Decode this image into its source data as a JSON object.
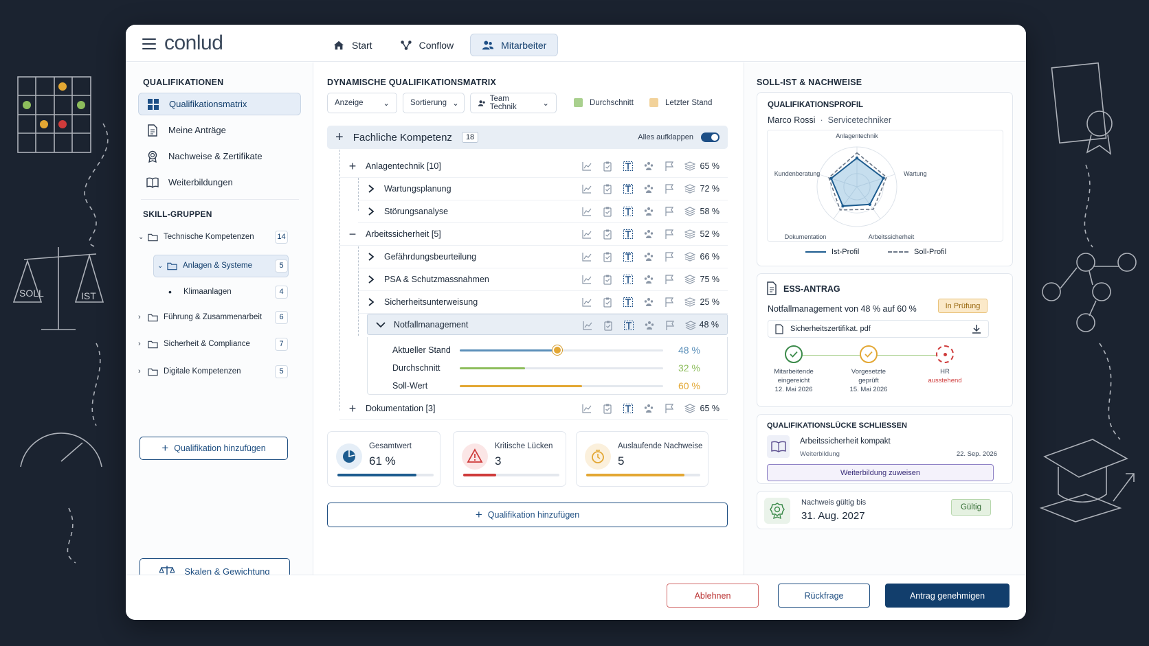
{
  "app": {
    "logo": "conlud"
  },
  "nav": {
    "tabs": [
      {
        "label": "Start"
      },
      {
        "label": "Conflow"
      },
      {
        "label": "Mitarbeiter"
      }
    ]
  },
  "sidebar": {
    "title": "QUALIFIKATIONEN",
    "items": [
      {
        "label": "Qualifikationsmatrix"
      },
      {
        "label": "Meine Anträge"
      },
      {
        "label": "Nachweise & Zertifikate"
      },
      {
        "label": "Weiterbildungen"
      }
    ],
    "skill_title": "SKILL-GRUPPEN",
    "groups": [
      {
        "label": "Technische Kompetenzen",
        "count": "14"
      },
      {
        "label": "Anlagen & Systeme",
        "count": "5"
      },
      {
        "label": "Klimaanlagen",
        "count": "4"
      },
      {
        "label": "Führung & Zusammenarbeit",
        "count": "6"
      },
      {
        "label": "Sicherheit & Compliance",
        "count": "7"
      },
      {
        "label": "Digitale Kompetenzen",
        "count": "5"
      }
    ],
    "add_label": "Qualifikation hinzufügen",
    "scales_label": "Skalen & Gewichtung"
  },
  "matrix": {
    "title": "DYNAMISCHE QUALIFIKATIONSMATRIX",
    "filters": {
      "display": "Anzeige",
      "sort": "Sortierung",
      "team": "Team Technik"
    },
    "legend": {
      "avg": "Durchschnitt",
      "last": "Letzter Stand"
    },
    "group_title": "Fachliche Kompetenz",
    "group_count": "18",
    "expand_all": "Alles aufklappen",
    "rows": [
      {
        "label": "Anlagentechnik [10]",
        "pct": "65 %"
      },
      {
        "label": "Wartungsplanung",
        "pct": "72 %"
      },
      {
        "label": "Störungsanalyse",
        "pct": "58 %"
      },
      {
        "label": "Arbeitssicherheit [5]",
        "pct": "52 %"
      },
      {
        "label": "Gefährdungsbeurteilung",
        "pct": "66 %"
      },
      {
        "label": "PSA & Schutzmassnahmen",
        "pct": "75 %"
      },
      {
        "label": "Sicherheitsunterweisung",
        "pct": "25 %"
      },
      {
        "label": "Notfallmanagement",
        "pct": "48 %"
      },
      {
        "label": "Dokumentation [3]",
        "pct": "65 %"
      }
    ],
    "detail": [
      {
        "label": "Aktueller Stand",
        "value": "48 %",
        "level": 48,
        "color": "#5b8fb9"
      },
      {
        "label": "Durchschnitt",
        "value": "32 %",
        "level": 32,
        "color": "#8dbd5c"
      },
      {
        "label": "Soll-Wert",
        "value": "60 %",
        "level": 60,
        "color": "#e3a733"
      }
    ],
    "stats": [
      {
        "label": "Gesamtwert",
        "value": "61 %",
        "level": 0.82,
        "color": "#1d5c8f"
      },
      {
        "label": "Kritische Lücken",
        "value": "3",
        "level": 0.34,
        "color": "#cf3b3b"
      },
      {
        "label": "Auslaufende Nachweise",
        "value": "5",
        "level": 0.86,
        "color": "#e3a733"
      }
    ],
    "add_label": "Qualifikation hinzufügen"
  },
  "right": {
    "title": "SOLL-IST & NACHWEISE",
    "profile": {
      "title": "QUALIFIKATIONSPROFIL",
      "name": "Marco Rossi",
      "role": "Servicetechniker",
      "axes": [
        "Anlagentechnik",
        "Wartung",
        "Arbeitssicherheit",
        "Dokumentation",
        "Kundenberatung"
      ],
      "ist": [
        0.72,
        0.7,
        0.55,
        0.6,
        0.68
      ],
      "soll": [
        0.85,
        0.78,
        0.7,
        0.72,
        0.74
      ],
      "legend_ist": "Ist-Profil",
      "legend_soll": "Soll-Profil"
    },
    "ess": {
      "title": "ESS-ANTRAG",
      "text": "Notfallmanagement von 48 % auf 60 %",
      "status": "In Prüfung",
      "file": "Sicherheitszertifikat. pdf",
      "steps": [
        {
          "l1": "Mitarbeitende",
          "l2": "eingereicht",
          "date": "12. Mai 2026"
        },
        {
          "l1": "Vorgesetzte",
          "l2": "geprüft",
          "date": "15. Mai 2026"
        },
        {
          "l1": "HR",
          "l2": "ausstehend",
          "date": ""
        }
      ]
    },
    "gap": {
      "title": "QUALIFIKATIONSLÜCKE SCHLIESSEN",
      "course": "Arbeitssicherheit kompakt",
      "type": "Weiterbildung",
      "date": "22. Sep. 2026",
      "assign": "Weiterbildung zuweisen"
    },
    "cert": {
      "label": "Nachweis gültig bis",
      "date": "31. Aug. 2027",
      "status": "Gültig"
    }
  },
  "footer": {
    "reject": "Ablehnen",
    "query": "Rückfrage",
    "approve": "Antrag genehmigen"
  }
}
